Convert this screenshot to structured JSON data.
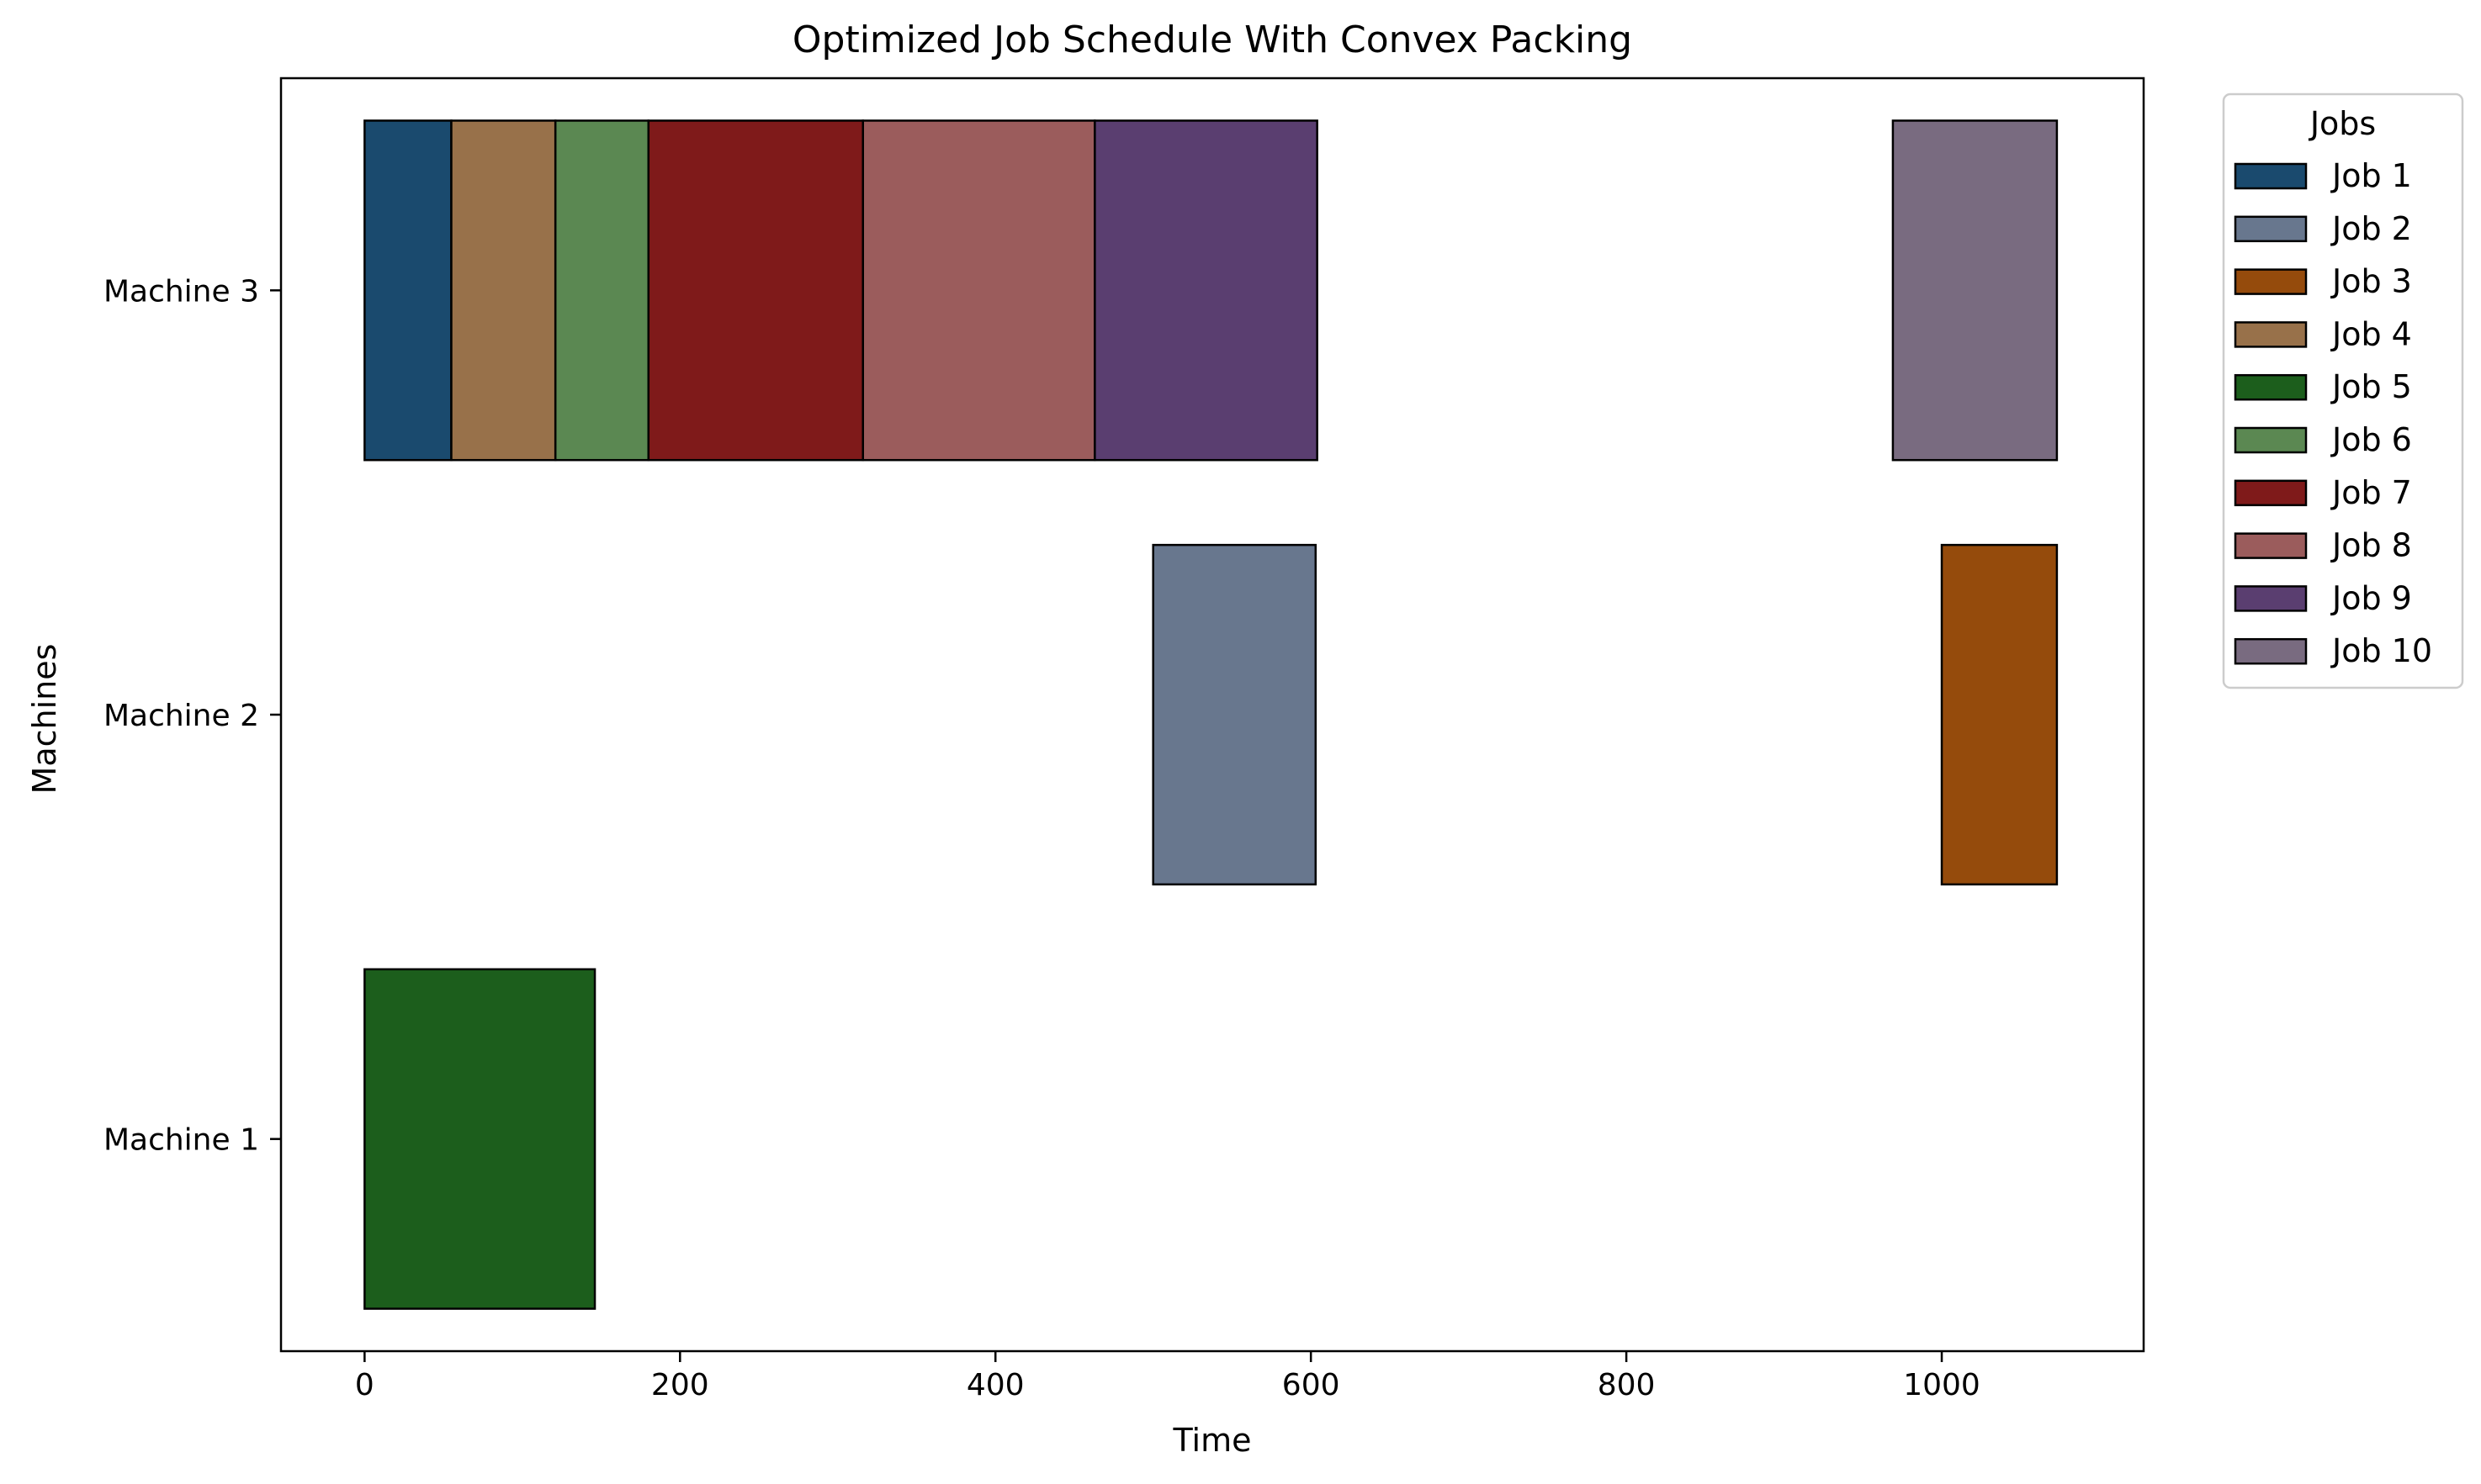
{
  "chart_data": {
    "type": "gantt",
    "title": "Optimized Job Schedule With Convex Packing",
    "xlabel": "Time",
    "ylabel": "Machines",
    "xlim": [
      -53,
      1128
    ],
    "x_ticks": [
      0,
      200,
      400,
      600,
      800,
      1000
    ],
    "machines": [
      "Machine 1",
      "Machine 2",
      "Machine 3"
    ],
    "grid": false,
    "legend": {
      "title": "Jobs",
      "placement": "outside-top-right",
      "entries": [
        "Job 1",
        "Job 2",
        "Job 3",
        "Job 4",
        "Job 5",
        "Job 6",
        "Job 7",
        "Job 8",
        "Job 9",
        "Job 10"
      ]
    },
    "jobs": [
      {
        "job": "Job 1",
        "machine": "Machine 3",
        "start": 0,
        "end": 55,
        "color": "#1a4a6e"
      },
      {
        "job": "Job 2",
        "machine": "Machine 2",
        "start": 500,
        "end": 603,
        "color": "#68778e"
      },
      {
        "job": "Job 3",
        "machine": "Machine 2",
        "start": 1000,
        "end": 1073,
        "color": "#954b0c"
      },
      {
        "job": "Job 4",
        "machine": "Machine 3",
        "start": 55,
        "end": 121,
        "color": "#98714a"
      },
      {
        "job": "Job 5",
        "machine": "Machine 1",
        "start": 0,
        "end": 146,
        "color": "#1c5e1c"
      },
      {
        "job": "Job 6",
        "machine": "Machine 3",
        "start": 121,
        "end": 180,
        "color": "#5b8852"
      },
      {
        "job": "Job 7",
        "machine": "Machine 3",
        "start": 180,
        "end": 316,
        "color": "#7f1a1a"
      },
      {
        "job": "Job 8",
        "machine": "Machine 3",
        "start": 316,
        "end": 463,
        "color": "#9b5c5c"
      },
      {
        "job": "Job 9",
        "machine": "Machine 3",
        "start": 463,
        "end": 604,
        "color": "#5a3e70"
      },
      {
        "job": "Job 10",
        "machine": "Machine 3",
        "start": 969,
        "end": 1073,
        "color": "#796b80"
      }
    ]
  }
}
